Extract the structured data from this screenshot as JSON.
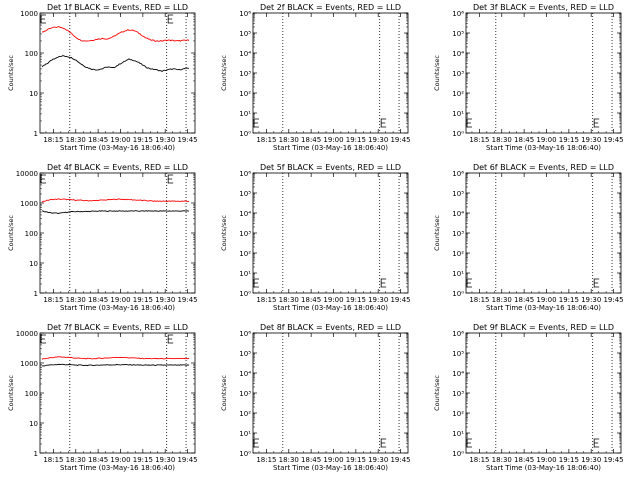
{
  "figure": {
    "colors": {
      "events": "#000000",
      "lld": "#ff0000"
    }
  },
  "chart_data": [
    {
      "type": "line",
      "title": "Det 1f BLACK = Events, RED = LLD",
      "xlabel": "Start Time (03-May-16 18:06:40)",
      "ylabel": "Counts/sec",
      "yscale": "log",
      "ylim": [
        1,
        1000
      ],
      "yticks": [
        "1",
        "10",
        "100",
        "1000"
      ],
      "xticks": [
        "18:15",
        "18:30",
        "18:45",
        "19:00",
        "19:15",
        "19:30",
        "19:45"
      ],
      "vlines": [
        "18:26",
        "19:31",
        "19:44"
      ],
      "marker": "19:32",
      "series": [
        {
          "color": "#ff0000",
          "values": [
            330,
            380,
            430,
            450,
            420,
            340,
            260,
            210,
            200,
            205,
            220,
            230,
            225,
            250,
            300,
            350,
            380,
            360,
            300,
            240,
            210,
            200,
            200,
            210,
            205,
            200,
            205,
            210
          ]
        },
        {
          "color": "#000000",
          "values": [
            45,
            55,
            70,
            80,
            85,
            80,
            70,
            55,
            45,
            40,
            38,
            40,
            45,
            42,
            50,
            60,
            70,
            65,
            55,
            45,
            40,
            38,
            35,
            38,
            40,
            38,
            40,
            42
          ]
        }
      ]
    },
    {
      "type": "line",
      "title": "Det 2f BLACK = Events, RED = LLD",
      "xlabel": "Start Time (03-May-16 18:06:40)",
      "ylabel": "Counts/sec",
      "yscale": "log",
      "ylim": [
        1,
        1000000
      ],
      "yticks": [
        "10⁰",
        "10¹",
        "10²",
        "10³",
        "10⁴",
        "10⁵",
        "10⁶"
      ],
      "xticks": [
        "18:15",
        "18:30",
        "18:45",
        "19:00",
        "19:15",
        "19:30",
        "19:45"
      ],
      "vlines": [
        "18:26",
        "19:31",
        "19:44"
      ],
      "marker": "19:32",
      "series": []
    },
    {
      "type": "line",
      "title": "Det 3f BLACK = Events, RED = LLD",
      "xlabel": "Start Time (03-May-16 18:06:40)",
      "ylabel": "Counts/sec",
      "yscale": "log",
      "ylim": [
        1,
        1000000
      ],
      "yticks": [
        "10⁰",
        "10¹",
        "10²",
        "10³",
        "10⁴",
        "10⁵",
        "10⁶"
      ],
      "xticks": [
        "18:15",
        "18:30",
        "18:45",
        "19:00",
        "19:15",
        "19:30",
        "19:45"
      ],
      "vlines": [
        "18:26",
        "19:31",
        "19:44"
      ],
      "marker": "19:32",
      "series": []
    },
    {
      "type": "line",
      "title": "Det 4f BLACK = Events, RED = LLD",
      "xlabel": "Start Time (03-May-16 18:06:40)",
      "ylabel": "Counts/sec",
      "yscale": "log",
      "ylim": [
        1,
        10000
      ],
      "yticks": [
        "1",
        "10",
        "100",
        "1000",
        "10000"
      ],
      "xticks": [
        "18:15",
        "18:30",
        "18:45",
        "19:00",
        "19:15",
        "19:30",
        "19:45"
      ],
      "vlines": [
        "18:26",
        "19:31",
        "19:44"
      ],
      "marker": "19:32",
      "series": [
        {
          "color": "#ff0000",
          "values": [
            1100,
            1300,
            1350,
            1300,
            1250,
            1200,
            1200,
            1250,
            1300,
            1350,
            1300,
            1250,
            1200,
            1150,
            1150,
            1150,
            1150,
            1150
          ]
        },
        {
          "color": "#000000",
          "values": [
            540,
            470,
            450,
            500,
            520,
            520,
            530,
            540,
            540,
            540,
            540,
            540,
            540,
            540,
            540,
            540,
            540,
            540
          ]
        }
      ]
    },
    {
      "type": "line",
      "title": "Det 5f BLACK = Events, RED = LLD",
      "xlabel": "Start Time (03-May-16 18:06:40)",
      "ylabel": "Counts/sec",
      "yscale": "log",
      "ylim": [
        1,
        1000000
      ],
      "yticks": [
        "10⁰",
        "10¹",
        "10²",
        "10³",
        "10⁴",
        "10⁵",
        "10⁶"
      ],
      "xticks": [
        "18:15",
        "18:30",
        "18:45",
        "19:00",
        "19:15",
        "19:30",
        "19:45"
      ],
      "vlines": [
        "18:26",
        "19:31",
        "19:44"
      ],
      "marker": "19:32",
      "series": []
    },
    {
      "type": "line",
      "title": "Det 6f BLACK = Events, RED = LLD",
      "xlabel": "Start Time (03-May-16 18:06:40)",
      "ylabel": "Counts/sec",
      "yscale": "log",
      "ylim": [
        1,
        1000000
      ],
      "yticks": [
        "10⁰",
        "10¹",
        "10²",
        "10³",
        "10⁴",
        "10⁵",
        "10⁶"
      ],
      "xticks": [
        "18:15",
        "18:30",
        "18:45",
        "19:00",
        "19:15",
        "19:30",
        "19:45"
      ],
      "vlines": [
        "18:26",
        "19:31",
        "19:44"
      ],
      "marker": "19:32",
      "series": []
    },
    {
      "type": "line",
      "title": "Det 7f BLACK = Events, RED = LLD",
      "xlabel": "Start Time (03-May-16 18:06:40)",
      "ylabel": "Counts/sec",
      "yscale": "log",
      "ylim": [
        1,
        10000
      ],
      "yticks": [
        "1",
        "10",
        "100",
        "1000",
        "10000"
      ],
      "xticks": [
        "18:15",
        "18:30",
        "18:45",
        "19:00",
        "19:15",
        "19:30",
        "19:45"
      ],
      "vlines": [
        "18:26",
        "19:31",
        "19:44"
      ],
      "marker": "19:32",
      "series": [
        {
          "color": "#ff0000",
          "values": [
            1350,
            1500,
            1600,
            1550,
            1450,
            1400,
            1400,
            1450,
            1500,
            1550,
            1500,
            1450,
            1400,
            1400,
            1400,
            1400,
            1400,
            1400
          ]
        },
        {
          "color": "#000000",
          "values": [
            800,
            860,
            900,
            880,
            850,
            840,
            840,
            860,
            870,
            880,
            870,
            860,
            850,
            850,
            850,
            850,
            850,
            850
          ]
        }
      ]
    },
    {
      "type": "line",
      "title": "Det 8f BLACK = Events, RED = LLD",
      "xlabel": "Start Time (03-May-16 18:06:40)",
      "ylabel": "Counts/sec",
      "yscale": "log",
      "ylim": [
        1,
        1000000
      ],
      "yticks": [
        "10⁰",
        "10¹",
        "10²",
        "10³",
        "10⁴",
        "10⁵",
        "10⁶"
      ],
      "xticks": [
        "18:15",
        "18:30",
        "18:45",
        "19:00",
        "19:15",
        "19:30",
        "19:45"
      ],
      "vlines": [
        "18:26",
        "19:31",
        "19:44"
      ],
      "marker": "19:32",
      "series": []
    },
    {
      "type": "line",
      "title": "Det 9f BLACK = Events, RED = LLD",
      "xlabel": "Start Time (03-May-16 18:06:40)",
      "ylabel": "Counts/sec",
      "yscale": "log",
      "ylim": [
        1,
        1000000
      ],
      "yticks": [
        "10⁰",
        "10¹",
        "10²",
        "10³",
        "10⁴",
        "10⁵",
        "10⁶"
      ],
      "xticks": [
        "18:15",
        "18:30",
        "18:45",
        "19:00",
        "19:15",
        "19:30",
        "19:45"
      ],
      "vlines": [
        "18:26",
        "19:31",
        "19:44"
      ],
      "marker": "19:32",
      "series": []
    }
  ]
}
